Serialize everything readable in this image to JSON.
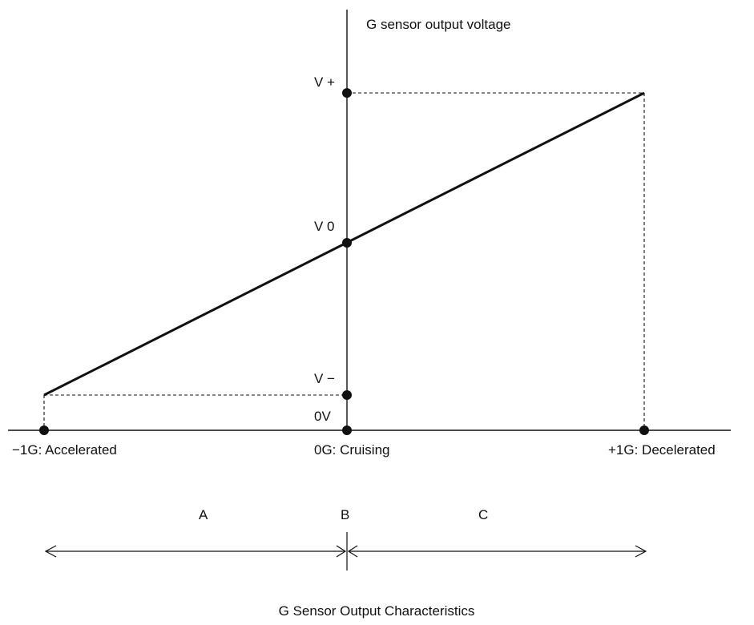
{
  "diagram": {
    "y_axis_title": "G sensor output voltage",
    "voltage_labels": {
      "v_plus": "V +",
      "v_zero": "V 0",
      "v_minus": "V −",
      "zero_volt": "0V"
    },
    "x_labels": {
      "minus_one_g": "−1G: Accelerated",
      "zero_g": "0G: Cruising",
      "plus_one_g": "+1G: Decelerated"
    },
    "regions": {
      "a": "A",
      "b": "B",
      "c": "C"
    },
    "caption": "G Sensor Output Characteristics"
  }
}
